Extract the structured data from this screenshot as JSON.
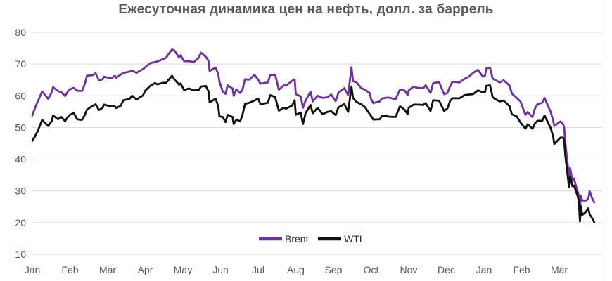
{
  "chart_data": {
    "type": "line",
    "title": "Ежесуточная динамика цен на нефть, долл. за баррель",
    "title_color": "#595959",
    "axis_label_color": "#595959",
    "gridline_color": "#D9D9D9",
    "frame_border_color": "#D9D9D9",
    "x_axis": {
      "tick_labels": [
        "Jan",
        "Feb",
        "Mar",
        "Apr",
        "May",
        "Jun",
        "Jul",
        "Aug",
        "Sep",
        "Oct",
        "Nov",
        "Dec",
        "Jan",
        "Feb",
        "Mar"
      ]
    },
    "y_axis": {
      "ticks": [
        10,
        20,
        30,
        40,
        50,
        60,
        70,
        80
      ],
      "range": [
        10,
        80
      ]
    },
    "grid": "horizontal",
    "legend": {
      "position": "bottom-center",
      "entries": [
        {
          "label": "Brent",
          "color": "#7030A0"
        },
        {
          "label": "WTI",
          "color": "#111111"
        }
      ]
    },
    "x_months": [
      0.0,
      0.03,
      0.07,
      0.1,
      0.13,
      0.26,
      0.32,
      0.42,
      0.52,
      0.55,
      0.68,
      0.77,
      0.87,
      0.97,
      1.1,
      1.19,
      1.32,
      1.39,
      1.45,
      1.61,
      1.68,
      1.77,
      1.87,
      1.9,
      2.1,
      2.19,
      2.23,
      2.35,
      2.42,
      2.58,
      2.65,
      2.77,
      2.84,
      2.94,
      3.0,
      3.13,
      3.26,
      3.32,
      3.48,
      3.55,
      3.71,
      3.77,
      3.9,
      3.94,
      4.03,
      4.16,
      4.29,
      4.42,
      4.48,
      4.61,
      4.68,
      4.71,
      4.87,
      4.94,
      4.97,
      5.06,
      5.13,
      5.19,
      5.32,
      5.35,
      5.42,
      5.52,
      5.58,
      5.65,
      5.77,
      5.9,
      6.0,
      6.06,
      6.26,
      6.32,
      6.45,
      6.55,
      6.68,
      6.74,
      6.9,
      6.97,
      7.0,
      7.13,
      7.19,
      7.26,
      7.39,
      7.45,
      7.58,
      7.71,
      7.84,
      7.94,
      8.06,
      8.13,
      8.29,
      8.39,
      8.48,
      8.52,
      8.61,
      8.74,
      8.84,
      8.97,
      9.0,
      9.06,
      9.23,
      9.29,
      9.42,
      9.48,
      9.65,
      9.77,
      9.9,
      9.97,
      10.0,
      10.13,
      10.23,
      10.39,
      10.45,
      10.58,
      10.65,
      10.81,
      10.94,
      11.03,
      11.1,
      11.16,
      11.29,
      11.35,
      11.48,
      11.61,
      11.71,
      11.84,
      11.97,
      12.03,
      12.06,
      12.16,
      12.23,
      12.29,
      12.42,
      12.52,
      12.68,
      12.74,
      12.87,
      12.97,
      13.1,
      13.16,
      13.29,
      13.35,
      13.42,
      13.55,
      13.61,
      13.77,
      13.84,
      13.87,
      14.03,
      14.1,
      14.13,
      14.16,
      14.26,
      14.29,
      14.35,
      14.39,
      14.48,
      14.52,
      14.55,
      14.58,
      14.61,
      14.71,
      14.77,
      14.81,
      14.87,
      14.93
    ],
    "series": [
      {
        "name": "Brent",
        "color": "#7030A0",
        "values": [
          53.8,
          54.9,
          56.0,
          57.1,
          57.8,
          61.4,
          60.5,
          59.0,
          61.2,
          62.7,
          61.5,
          61.1,
          59.9,
          61.9,
          62.5,
          61.6,
          61.5,
          63.6,
          66.3,
          66.5,
          67.1,
          64.8,
          65.2,
          66.0,
          65.5,
          66.3,
          65.7,
          66.7,
          67.2,
          67.6,
          67.9,
          67.2,
          67.8,
          68.4,
          69.0,
          70.3,
          70.6,
          70.8,
          71.6,
          72.0,
          74.6,
          74.3,
          72.0,
          72.8,
          70.9,
          70.9,
          70.6,
          72.0,
          73.6,
          72.3,
          71.0,
          67.8,
          68.9,
          66.8,
          64.5,
          61.3,
          60.6,
          63.3,
          62.3,
          60.0,
          62.0,
          60.9,
          61.8,
          65.2,
          65.1,
          66.6,
          65.1,
          63.8,
          64.2,
          66.5,
          66.7,
          61.9,
          63.3,
          63.2,
          64.7,
          65.2,
          60.5,
          59.8,
          56.2,
          58.5,
          61.3,
          58.2,
          60.0,
          59.3,
          59.5,
          60.4,
          58.3,
          60.9,
          62.4,
          60.2,
          69.0,
          64.6,
          64.3,
          62.4,
          61.9,
          60.8,
          58.9,
          57.7,
          58.2,
          59.1,
          59.4,
          59.4,
          58.9,
          62.0,
          61.6,
          60.2,
          61.7,
          62.9,
          62.5,
          62.4,
          63.3,
          60.9,
          64.0,
          64.3,
          60.5,
          60.9,
          63.0,
          64.4,
          64.3,
          64.2,
          65.3,
          66.1,
          67.2,
          68.2,
          66.0,
          66.3,
          68.6,
          68.9,
          65.4,
          65.0,
          64.2,
          64.9,
          63.2,
          60.7,
          59.3,
          58.2,
          54.0,
          54.9,
          53.3,
          55.8,
          57.3,
          57.8,
          59.3,
          55.0,
          52.2,
          50.5,
          51.9,
          51.1,
          50.0,
          45.3,
          34.4,
          37.2,
          33.2,
          33.9,
          30.1,
          28.7,
          24.9,
          28.5,
          27.0,
          27.0,
          27.4,
          29.9,
          27.8,
          26.4
        ]
      },
      {
        "name": "WTI",
        "color": "#111111",
        "values": [
          45.8,
          46.5,
          47.1,
          48.0,
          48.5,
          52.4,
          51.6,
          50.5,
          52.1,
          53.8,
          52.6,
          53.3,
          52.0,
          53.8,
          54.6,
          52.6,
          52.4,
          53.9,
          55.6,
          56.9,
          57.3,
          55.5,
          56.2,
          57.2,
          56.6,
          56.7,
          56.1,
          56.9,
          58.6,
          59.0,
          60.0,
          58.8,
          59.4,
          60.1,
          61.6,
          63.1,
          64.0,
          63.6,
          64.1,
          64.0,
          66.3,
          65.2,
          63.5,
          63.9,
          61.8,
          62.3,
          61.7,
          61.8,
          62.9,
          63.1,
          61.4,
          57.9,
          59.1,
          56.6,
          53.5,
          53.3,
          51.7,
          54.0,
          53.3,
          51.1,
          52.5,
          51.9,
          53.8,
          57.4,
          57.8,
          58.5,
          59.1,
          57.3,
          57.8,
          60.2,
          59.6,
          55.3,
          56.2,
          55.9,
          56.9,
          58.6,
          54.0,
          54.7,
          51.1,
          54.5,
          57.1,
          54.5,
          56.2,
          54.2,
          54.9,
          55.1,
          53.9,
          56.3,
          57.4,
          54.9,
          62.9,
          59.3,
          58.1,
          57.3,
          56.4,
          54.1,
          53.6,
          52.5,
          52.6,
          53.6,
          53.6,
          53.4,
          53.3,
          56.7,
          55.5,
          54.2,
          56.2,
          57.2,
          57.2,
          57.1,
          57.7,
          55.2,
          58.6,
          58.4,
          55.2,
          56.0,
          58.4,
          59.2,
          59.2,
          59.2,
          60.2,
          60.4,
          60.5,
          61.7,
          61.1,
          61.2,
          63.1,
          63.3,
          59.6,
          59.0,
          58.2,
          58.5,
          56.7,
          54.2,
          53.5,
          51.6,
          49.6,
          51.0,
          49.6,
          51.2,
          52.1,
          52.1,
          53.8,
          49.9,
          47.1,
          44.8,
          46.8,
          46.8,
          45.9,
          41.3,
          31.1,
          34.4,
          31.5,
          31.7,
          28.7,
          27.0,
          20.4,
          25.2,
          22.4,
          23.4,
          24.5,
          22.6,
          21.5,
          20.1
        ]
      }
    ]
  }
}
